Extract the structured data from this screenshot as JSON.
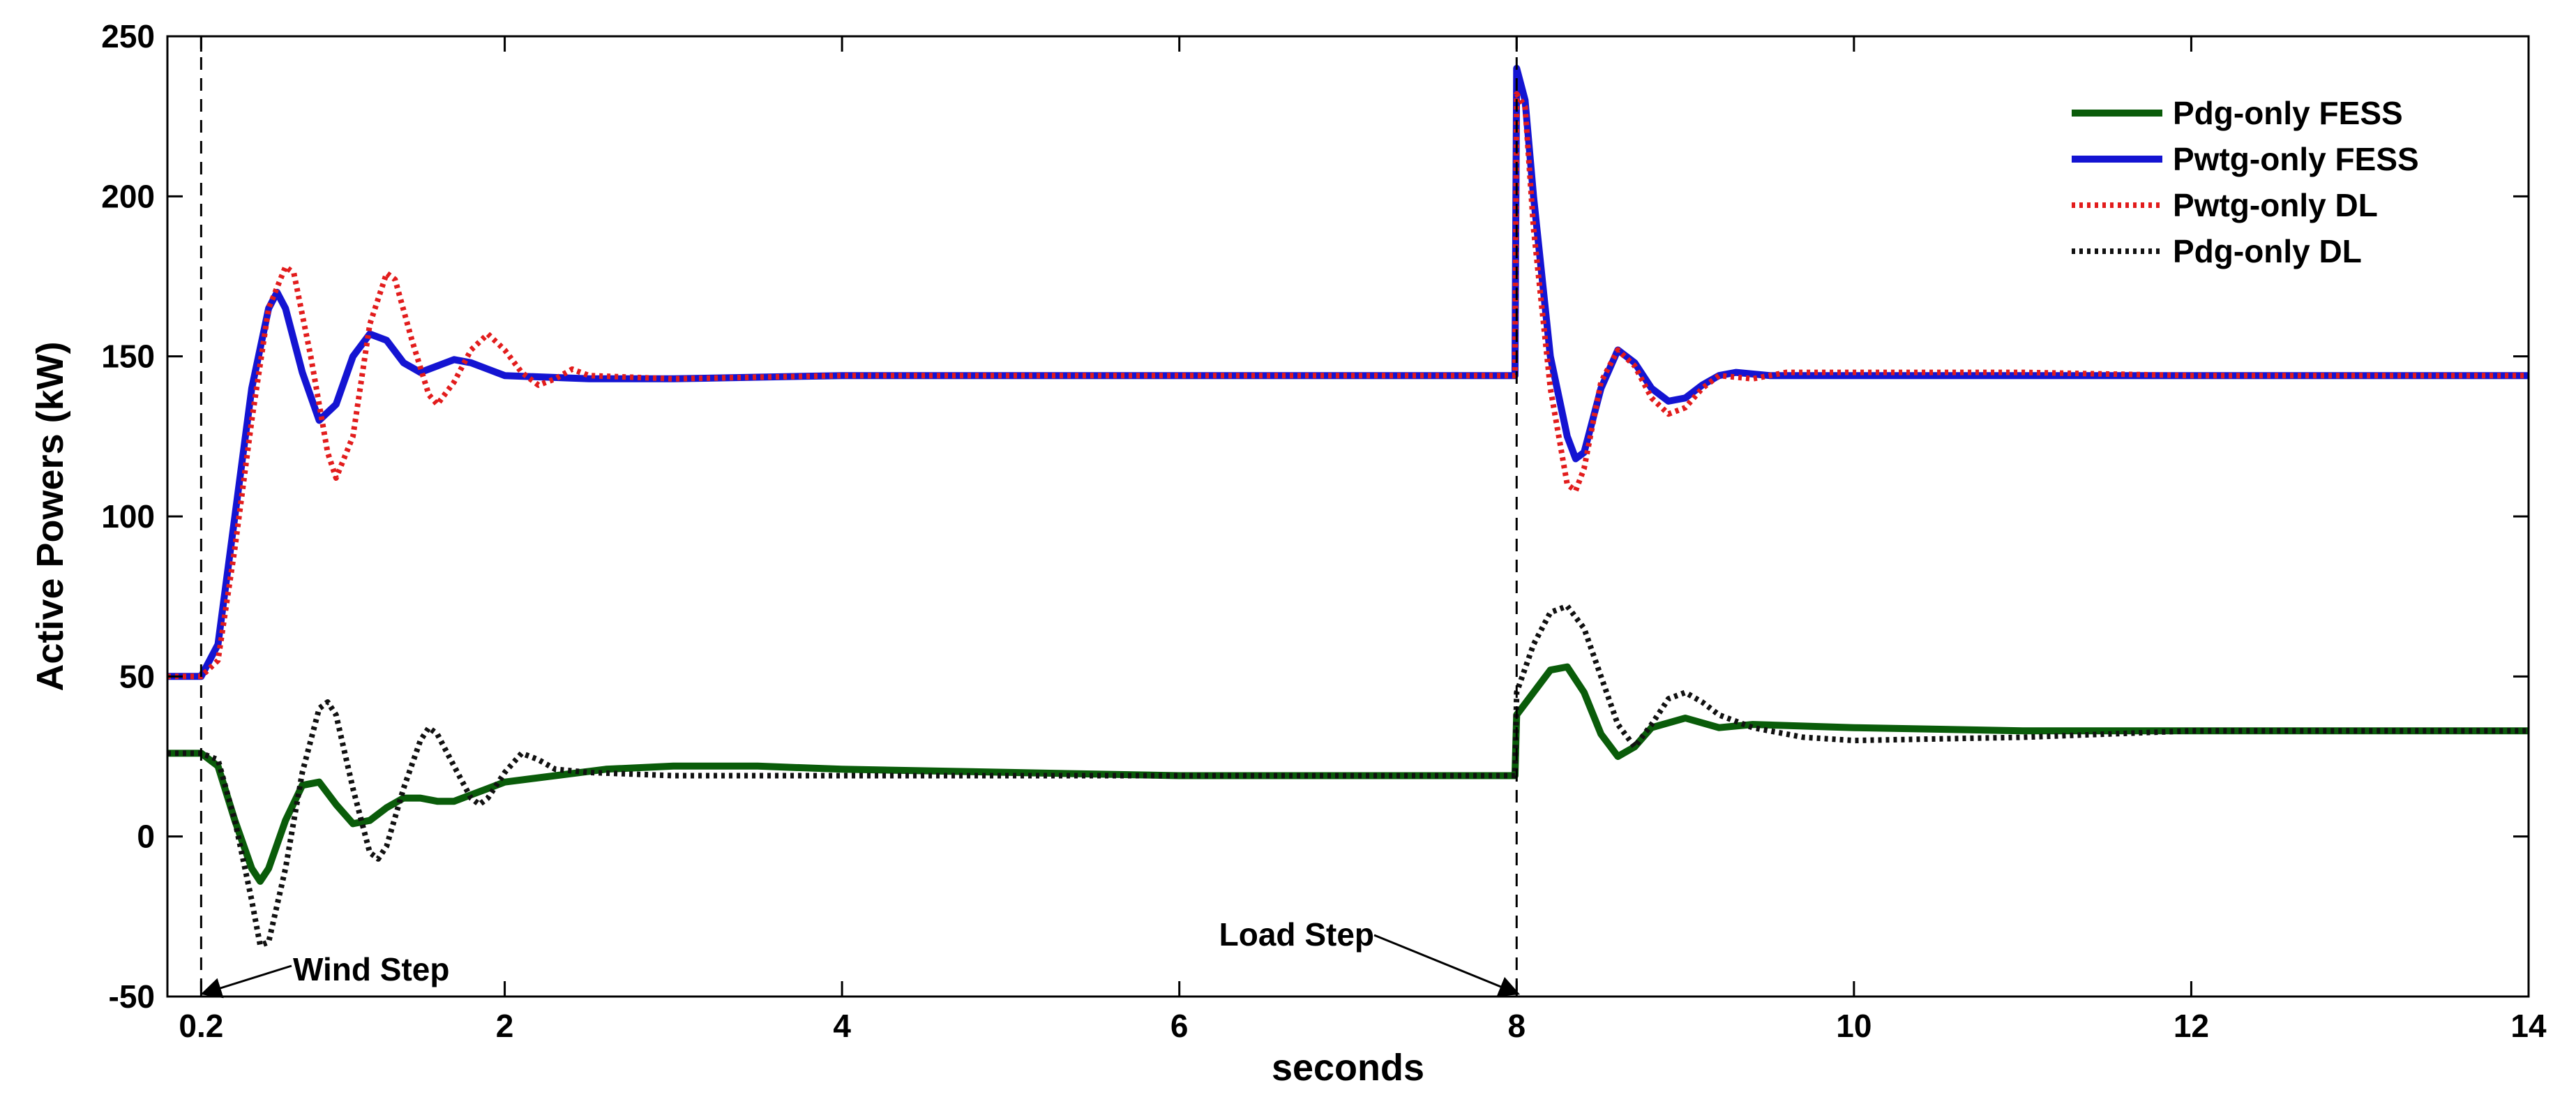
{
  "chart_data": {
    "type": "line",
    "title": "",
    "xlabel": "seconds",
    "ylabel": "Active Powers (kW)",
    "xlim": [
      0,
      14
    ],
    "ylim": [
      -50,
      250
    ],
    "xticks": [
      {
        "value": 0.2,
        "label": "0.2"
      },
      {
        "value": 2,
        "label": "2"
      },
      {
        "value": 4,
        "label": "4"
      },
      {
        "value": 6,
        "label": "6"
      },
      {
        "value": 8,
        "label": "8"
      },
      {
        "value": 10,
        "label": "10"
      },
      {
        "value": 12,
        "label": "12"
      },
      {
        "value": 14,
        "label": "14"
      }
    ],
    "yticks": [
      {
        "value": -50,
        "label": "-50"
      },
      {
        "value": 0,
        "label": "0"
      },
      {
        "value": 50,
        "label": "50"
      },
      {
        "value": 100,
        "label": "100"
      },
      {
        "value": 150,
        "label": "150"
      },
      {
        "value": 200,
        "label": "200"
      },
      {
        "value": 250,
        "label": "250"
      }
    ],
    "grid": false,
    "legend_position": "top-right",
    "series": [
      {
        "name": "Pdg-only FESS",
        "color": "#0a5c0a",
        "style": "solid",
        "points": [
          [
            0,
            26
          ],
          [
            0.2,
            26
          ],
          [
            0.3,
            22
          ],
          [
            0.4,
            5
          ],
          [
            0.5,
            -10
          ],
          [
            0.55,
            -14
          ],
          [
            0.6,
            -10
          ],
          [
            0.7,
            5
          ],
          [
            0.8,
            16
          ],
          [
            0.9,
            17
          ],
          [
            1.0,
            10
          ],
          [
            1.1,
            4
          ],
          [
            1.2,
            5
          ],
          [
            1.3,
            9
          ],
          [
            1.4,
            12
          ],
          [
            1.5,
            12
          ],
          [
            1.6,
            11
          ],
          [
            1.7,
            11
          ],
          [
            1.8,
            13
          ],
          [
            1.9,
            15
          ],
          [
            2.0,
            17
          ],
          [
            2.3,
            19
          ],
          [
            2.6,
            21
          ],
          [
            3.0,
            22
          ],
          [
            3.5,
            22
          ],
          [
            4.0,
            21
          ],
          [
            5.0,
            20
          ],
          [
            6.0,
            19
          ],
          [
            7.0,
            19
          ],
          [
            7.98,
            19
          ],
          [
            7.99,
            19
          ],
          [
            8.0,
            38
          ],
          [
            8.1,
            45
          ],
          [
            8.2,
            52
          ],
          [
            8.3,
            53
          ],
          [
            8.4,
            45
          ],
          [
            8.5,
            32
          ],
          [
            8.6,
            25
          ],
          [
            8.7,
            28
          ],
          [
            8.8,
            34
          ],
          [
            9.0,
            37
          ],
          [
            9.2,
            34
          ],
          [
            9.4,
            35
          ],
          [
            10.0,
            34
          ],
          [
            11.0,
            33
          ],
          [
            12.0,
            33
          ],
          [
            13.0,
            33
          ],
          [
            14.0,
            33
          ]
        ]
      },
      {
        "name": "Pwtg-only FESS",
        "color": "#1414d2",
        "style": "solid",
        "points": [
          [
            0,
            50
          ],
          [
            0.2,
            50
          ],
          [
            0.3,
            60
          ],
          [
            0.4,
            100
          ],
          [
            0.5,
            140
          ],
          [
            0.6,
            165
          ],
          [
            0.65,
            170
          ],
          [
            0.7,
            165
          ],
          [
            0.8,
            145
          ],
          [
            0.9,
            130
          ],
          [
            1.0,
            135
          ],
          [
            1.1,
            150
          ],
          [
            1.2,
            157
          ],
          [
            1.3,
            155
          ],
          [
            1.4,
            148
          ],
          [
            1.5,
            145
          ],
          [
            1.6,
            147
          ],
          [
            1.7,
            149
          ],
          [
            1.8,
            148
          ],
          [
            1.9,
            146
          ],
          [
            2.0,
            144
          ],
          [
            2.5,
            143
          ],
          [
            3.0,
            143
          ],
          [
            4.0,
            144
          ],
          [
            5.0,
            144
          ],
          [
            6.0,
            144
          ],
          [
            7.0,
            144
          ],
          [
            7.98,
            144
          ],
          [
            7.99,
            144
          ],
          [
            8.0,
            240
          ],
          [
            8.05,
            230
          ],
          [
            8.1,
            200
          ],
          [
            8.2,
            150
          ],
          [
            8.3,
            125
          ],
          [
            8.35,
            118
          ],
          [
            8.4,
            120
          ],
          [
            8.5,
            140
          ],
          [
            8.6,
            152
          ],
          [
            8.7,
            148
          ],
          [
            8.8,
            140
          ],
          [
            8.9,
            136
          ],
          [
            9.0,
            137
          ],
          [
            9.1,
            141
          ],
          [
            9.2,
            144
          ],
          [
            9.3,
            145
          ],
          [
            9.5,
            144
          ],
          [
            10.0,
            144
          ],
          [
            11.0,
            144
          ],
          [
            12.0,
            144
          ],
          [
            13.0,
            144
          ],
          [
            14.0,
            144
          ]
        ]
      },
      {
        "name": "Pwtg-only DL",
        "color": "#e21c1c",
        "style": "dotted",
        "points": [
          [
            0,
            50
          ],
          [
            0.2,
            50
          ],
          [
            0.3,
            55
          ],
          [
            0.4,
            90
          ],
          [
            0.5,
            130
          ],
          [
            0.6,
            165
          ],
          [
            0.7,
            178
          ],
          [
            0.75,
            176
          ],
          [
            0.85,
            150
          ],
          [
            0.95,
            120
          ],
          [
            1.0,
            112
          ],
          [
            1.1,
            125
          ],
          [
            1.2,
            160
          ],
          [
            1.3,
            176
          ],
          [
            1.35,
            174
          ],
          [
            1.45,
            155
          ],
          [
            1.55,
            138
          ],
          [
            1.6,
            135
          ],
          [
            1.7,
            142
          ],
          [
            1.8,
            152
          ],
          [
            1.9,
            157
          ],
          [
            2.0,
            152
          ],
          [
            2.1,
            145
          ],
          [
            2.2,
            141
          ],
          [
            2.3,
            143
          ],
          [
            2.4,
            146
          ],
          [
            2.5,
            144
          ],
          [
            3.0,
            143
          ],
          [
            4.0,
            144
          ],
          [
            5.0,
            144
          ],
          [
            6.0,
            144
          ],
          [
            7.0,
            144
          ],
          [
            7.98,
            144
          ],
          [
            7.99,
            144
          ],
          [
            8.0,
            232
          ],
          [
            8.05,
            228
          ],
          [
            8.1,
            190
          ],
          [
            8.2,
            140
          ],
          [
            8.3,
            110
          ],
          [
            8.35,
            108
          ],
          [
            8.4,
            115
          ],
          [
            8.5,
            142
          ],
          [
            8.6,
            152
          ],
          [
            8.7,
            147
          ],
          [
            8.8,
            137
          ],
          [
            8.9,
            132
          ],
          [
            9.0,
            134
          ],
          [
            9.1,
            140
          ],
          [
            9.2,
            144
          ],
          [
            9.4,
            143
          ],
          [
            9.6,
            145
          ],
          [
            10.0,
            145
          ],
          [
            11.0,
            145
          ],
          [
            12.0,
            144
          ],
          [
            13.0,
            144
          ],
          [
            14.0,
            144
          ]
        ]
      },
      {
        "name": "Pdg-only DL",
        "color": "#111111",
        "style": "dotted",
        "points": [
          [
            0,
            26
          ],
          [
            0.2,
            26
          ],
          [
            0.3,
            24
          ],
          [
            0.4,
            5
          ],
          [
            0.5,
            -20
          ],
          [
            0.55,
            -34
          ],
          [
            0.6,
            -33
          ],
          [
            0.7,
            -10
          ],
          [
            0.8,
            20
          ],
          [
            0.9,
            40
          ],
          [
            0.95,
            42
          ],
          [
            1.0,
            38
          ],
          [
            1.1,
            15
          ],
          [
            1.2,
            -5
          ],
          [
            1.25,
            -7
          ],
          [
            1.3,
            -3
          ],
          [
            1.4,
            15
          ],
          [
            1.5,
            30
          ],
          [
            1.55,
            34
          ],
          [
            1.6,
            32
          ],
          [
            1.7,
            22
          ],
          [
            1.8,
            12
          ],
          [
            1.85,
            10
          ],
          [
            1.9,
            12
          ],
          [
            2.0,
            20
          ],
          [
            2.1,
            26
          ],
          [
            2.2,
            24
          ],
          [
            2.3,
            21
          ],
          [
            2.5,
            20
          ],
          [
            3.0,
            19
          ],
          [
            4.0,
            19
          ],
          [
            5.0,
            19
          ],
          [
            6.0,
            19
          ],
          [
            7.0,
            19
          ],
          [
            7.98,
            19
          ],
          [
            7.99,
            19
          ],
          [
            8.0,
            45
          ],
          [
            8.1,
            60
          ],
          [
            8.2,
            70
          ],
          [
            8.3,
            72
          ],
          [
            8.4,
            65
          ],
          [
            8.5,
            50
          ],
          [
            8.6,
            35
          ],
          [
            8.7,
            28
          ],
          [
            8.8,
            35
          ],
          [
            8.9,
            43
          ],
          [
            9.0,
            45
          ],
          [
            9.1,
            42
          ],
          [
            9.2,
            38
          ],
          [
            9.4,
            34
          ],
          [
            9.7,
            31
          ],
          [
            10.0,
            30
          ],
          [
            11.0,
            31
          ],
          [
            12.0,
            33
          ],
          [
            13.0,
            33
          ],
          [
            14.0,
            33
          ]
        ]
      }
    ],
    "annotations": [
      {
        "text": "Wind Step",
        "x": 0.2,
        "y": -50
      },
      {
        "text": "Load Step",
        "x": 8.0,
        "y": -50
      }
    ],
    "event_markers": [
      0.2,
      8.0
    ]
  }
}
